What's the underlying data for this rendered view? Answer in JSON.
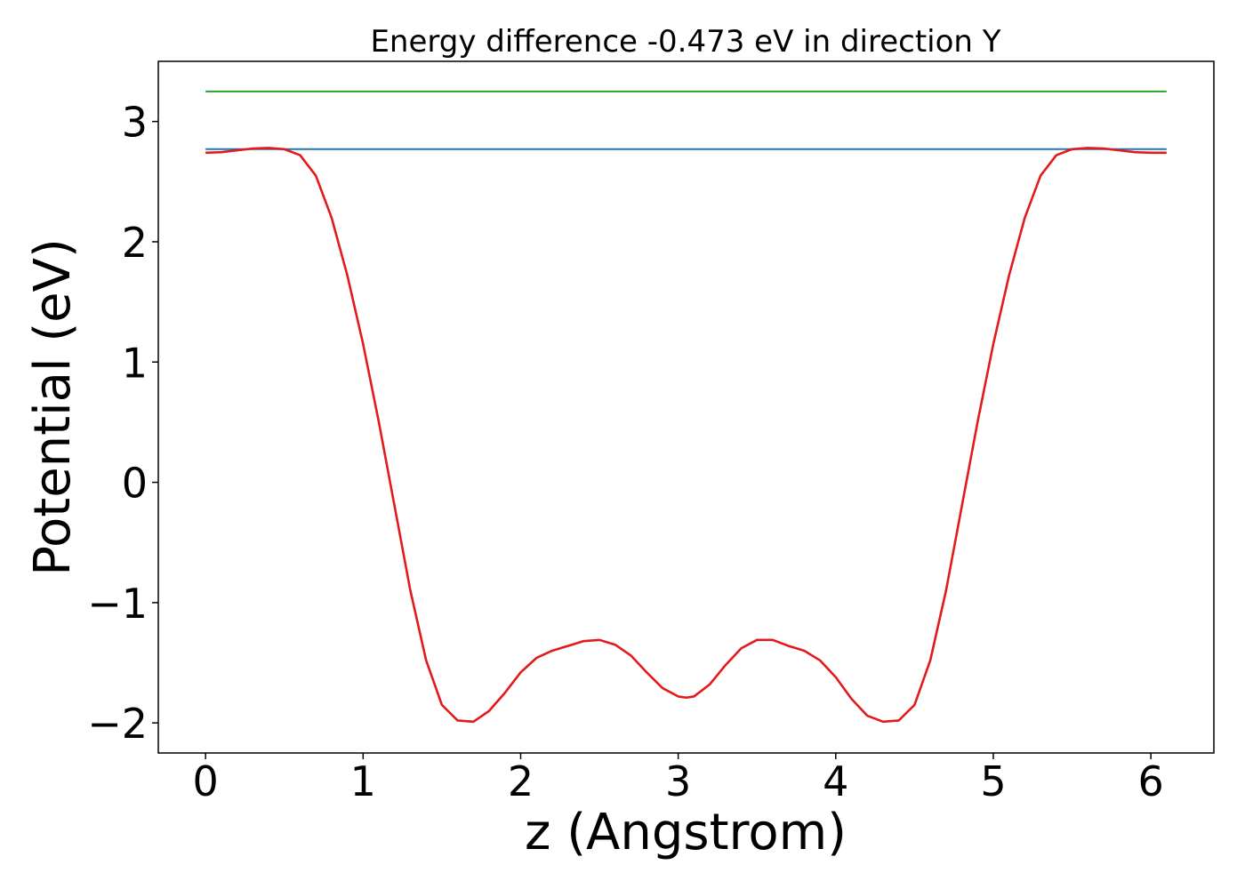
{
  "chart_data": {
    "type": "line",
    "title": "Energy difference -0.473 eV in direction Y",
    "xlabel": "z (Angstrom)",
    "ylabel": "Potential (eV)",
    "xlim": [
      -0.3,
      6.4
    ],
    "ylim": [
      -2.25,
      3.5
    ],
    "xticks": [
      0,
      1,
      2,
      3,
      4,
      5,
      6
    ],
    "xtick_labels": [
      "0",
      "1",
      "2",
      "3",
      "4",
      "5",
      "6"
    ],
    "yticks": [
      -2,
      -1,
      0,
      1,
      2,
      3
    ],
    "ytick_labels": [
      "−2",
      "−1",
      "0",
      "1",
      "2",
      "3"
    ],
    "grid": false,
    "series": [
      {
        "color": "#2ca02c",
        "x": [
          0,
          6.1
        ],
        "y": [
          3.25,
          3.25
        ]
      },
      {
        "color": "#1f77b4",
        "x": [
          0,
          6.1
        ],
        "y": [
          2.77,
          2.77
        ]
      },
      {
        "color": "#e31a1c",
        "x": [
          0.0,
          0.1,
          0.2,
          0.3,
          0.4,
          0.5,
          0.6,
          0.7,
          0.8,
          0.9,
          1.0,
          1.1,
          1.2,
          1.3,
          1.4,
          1.5,
          1.6,
          1.7,
          1.8,
          1.9,
          2.0,
          2.1,
          2.2,
          2.3,
          2.4,
          2.5,
          2.6,
          2.7,
          2.8,
          2.9,
          3.0,
          3.05,
          3.1,
          3.2,
          3.3,
          3.4,
          3.5,
          3.6,
          3.7,
          3.8,
          3.9,
          4.0,
          4.1,
          4.2,
          4.3,
          4.4,
          4.5,
          4.6,
          4.7,
          4.8,
          4.9,
          5.0,
          5.1,
          5.2,
          5.3,
          5.4,
          5.5,
          5.6,
          5.7,
          5.8,
          5.9,
          6.0,
          6.1
        ],
        "y": [
          2.74,
          2.745,
          2.76,
          2.775,
          2.78,
          2.77,
          2.72,
          2.55,
          2.2,
          1.72,
          1.15,
          0.5,
          -0.2,
          -0.9,
          -1.48,
          -1.85,
          -1.98,
          -1.99,
          -1.9,
          -1.75,
          -1.58,
          -1.46,
          -1.4,
          -1.36,
          -1.32,
          -1.31,
          -1.35,
          -1.44,
          -1.58,
          -1.71,
          -1.78,
          -1.79,
          -1.78,
          -1.68,
          -1.52,
          -1.38,
          -1.31,
          -1.31,
          -1.36,
          -1.4,
          -1.48,
          -1.62,
          -1.8,
          -1.94,
          -1.99,
          -1.98,
          -1.85,
          -1.48,
          -0.9,
          -0.2,
          0.5,
          1.15,
          1.72,
          2.2,
          2.55,
          2.72,
          2.77,
          2.78,
          2.775,
          2.76,
          2.745,
          2.74,
          2.74
        ]
      }
    ]
  }
}
